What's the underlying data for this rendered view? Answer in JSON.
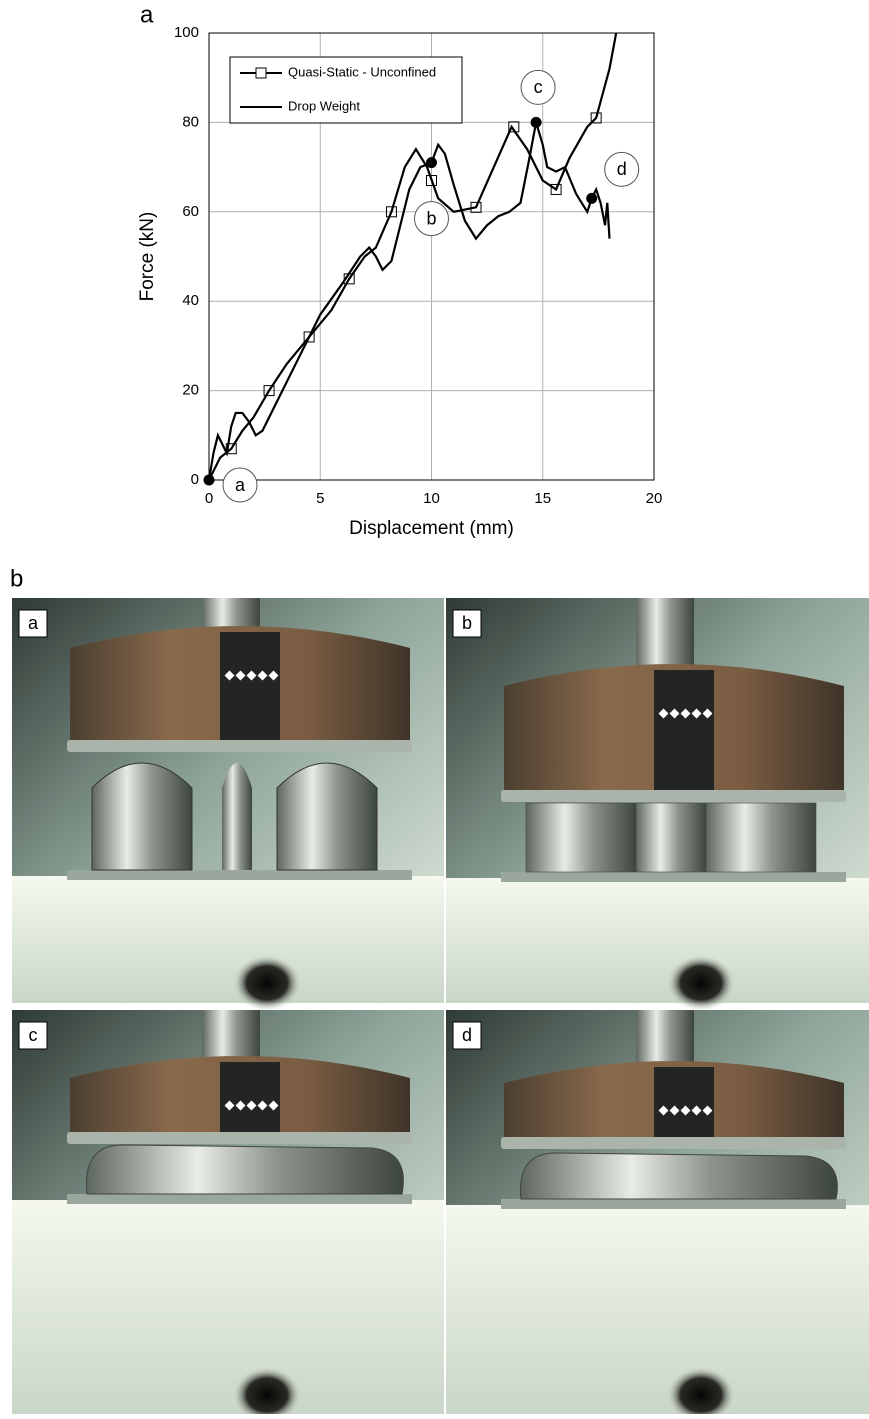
{
  "chart_data": {
    "type": "line",
    "panel_label": "a",
    "x_label": "Displacement (mm)",
    "y_label": "Force (kN)",
    "xlim": [
      0,
      20
    ],
    "ylim": [
      0,
      100
    ],
    "xticks": [
      0,
      5,
      10,
      15,
      20
    ],
    "yticks": [
      0,
      20,
      40,
      60,
      80,
      100
    ],
    "grid": true,
    "legend": "upper left",
    "series": [
      {
        "name": "Quasi-Static - Unconfined",
        "color": "#000000",
        "marker": "square",
        "x": [
          0,
          0.5,
          1,
          1.5,
          2,
          2.7,
          3.5,
          4.5,
          5.5,
          6.3,
          7,
          7.5,
          8.2,
          8.8,
          9.3,
          9.8,
          10.3,
          11,
          12,
          12.8,
          13.6,
          14.3,
          15,
          15.6,
          16.2,
          17,
          17.4,
          18,
          18.3
        ],
        "values": [
          0,
          5,
          7,
          11,
          14,
          20,
          26,
          32,
          38,
          45,
          50,
          52,
          60,
          70,
          74,
          70,
          63,
          60,
          61,
          70,
          79,
          74,
          67,
          65,
          72,
          79,
          81,
          92,
          100
        ],
        "marker_x": [
          1,
          2.7,
          4.5,
          6.3,
          8.2,
          10,
          12,
          13.7,
          15.6,
          17.4
        ],
        "marker_values": [
          7,
          20,
          32,
          45,
          60,
          67,
          61,
          79,
          65,
          81
        ]
      },
      {
        "name": "Drop Weight",
        "color": "#000000",
        "x": [
          0,
          0.2,
          0.4,
          0.6,
          0.8,
          1,
          1.2,
          1.5,
          1.8,
          2.1,
          2.4,
          3,
          4,
          5,
          6,
          6.8,
          7.2,
          7.5,
          7.8,
          8.2,
          8.6,
          9,
          9.5,
          10,
          10.3,
          10.6,
          11,
          11.5,
          12,
          12.5,
          13,
          13.5,
          14,
          14.4,
          14.7,
          15,
          15.2,
          15.6,
          16,
          16.5,
          17,
          17.2,
          17.4,
          17.6,
          17.8,
          17.9,
          18
        ],
        "values": [
          0,
          6,
          10,
          8,
          6,
          12,
          15,
          15,
          13,
          10,
          11,
          17,
          27,
          37,
          44,
          50,
          52,
          50,
          47,
          49,
          57,
          65,
          70,
          71,
          75,
          73,
          66,
          58,
          54,
          57,
          59,
          60,
          62,
          72,
          80,
          75,
          70,
          69,
          70,
          64,
          60,
          63,
          65,
          62,
          57,
          62,
          54
        ]
      }
    ],
    "points": {
      "x": [
        0,
        10,
        14.7,
        17.2
      ],
      "values": [
        0,
        71,
        80,
        63
      ],
      "labels": [
        "a",
        "b",
        "c",
        "d"
      ]
    }
  },
  "figure_b": {
    "panel_label": "b",
    "panels": [
      "a",
      "b",
      "c",
      "d"
    ]
  }
}
